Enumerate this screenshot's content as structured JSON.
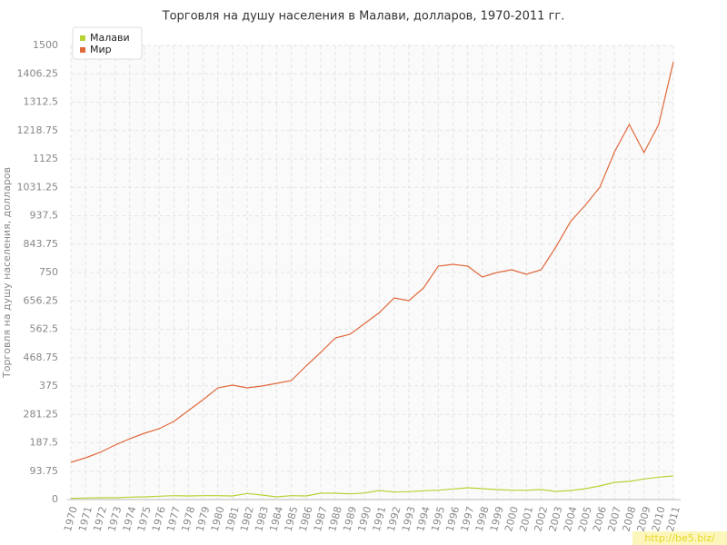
{
  "chart_data": {
    "type": "line",
    "title": "Торговля на душу населения в Малави, долларов, 1970-2011 гг.",
    "y_label": "Торговля на душу населения, долларов",
    "x": [
      1970,
      1971,
      1972,
      1973,
      1974,
      1975,
      1976,
      1977,
      1978,
      1979,
      1980,
      1981,
      1982,
      1983,
      1984,
      1985,
      1986,
      1987,
      1988,
      1989,
      1990,
      1991,
      1992,
      1993,
      1994,
      1995,
      1996,
      1997,
      1998,
      1999,
      2000,
      2001,
      2002,
      2003,
      2004,
      2005,
      2006,
      2007,
      2008,
      2009,
      2010,
      2011
    ],
    "xlim": [
      1970,
      2011
    ],
    "ylim": [
      0,
      1500
    ],
    "yticks": [
      0,
      93.75,
      187.5,
      281.25,
      375,
      468.75,
      562.5,
      656.25,
      750,
      843.75,
      937.5,
      1031.25,
      1125,
      1218.75,
      1312.5,
      1406.25,
      1500
    ],
    "grid": true,
    "legend": "top-left",
    "series": [
      {
        "name": "Малави",
        "color": "#b5d334",
        "values": [
          4,
          5,
          6,
          6,
          8,
          9,
          11,
          13,
          12,
          13,
          13,
          12,
          20,
          15,
          9,
          13,
          12,
          21,
          21,
          19,
          22,
          30,
          25,
          26,
          29,
          31,
          35,
          39,
          36,
          33,
          31,
          31,
          33,
          27,
          30,
          36,
          45,
          57,
          60,
          68,
          74,
          78
        ]
      },
      {
        "name": "Мир",
        "color": "#e0683a",
        "values": [
          123,
          138,
          156,
          180,
          201,
          219,
          234,
          258,
          294,
          330,
          369,
          378,
          369,
          375,
          384,
          393,
          441,
          486,
          534,
          546,
          582,
          618,
          666,
          657,
          699,
          771,
          777,
          771,
          735,
          750,
          759,
          744,
          759,
          834,
          918,
          972,
          1032,
          1149,
          1239,
          1146,
          1239,
          1446
        ]
      }
    ],
    "watermark": "http://be5.biz/"
  }
}
